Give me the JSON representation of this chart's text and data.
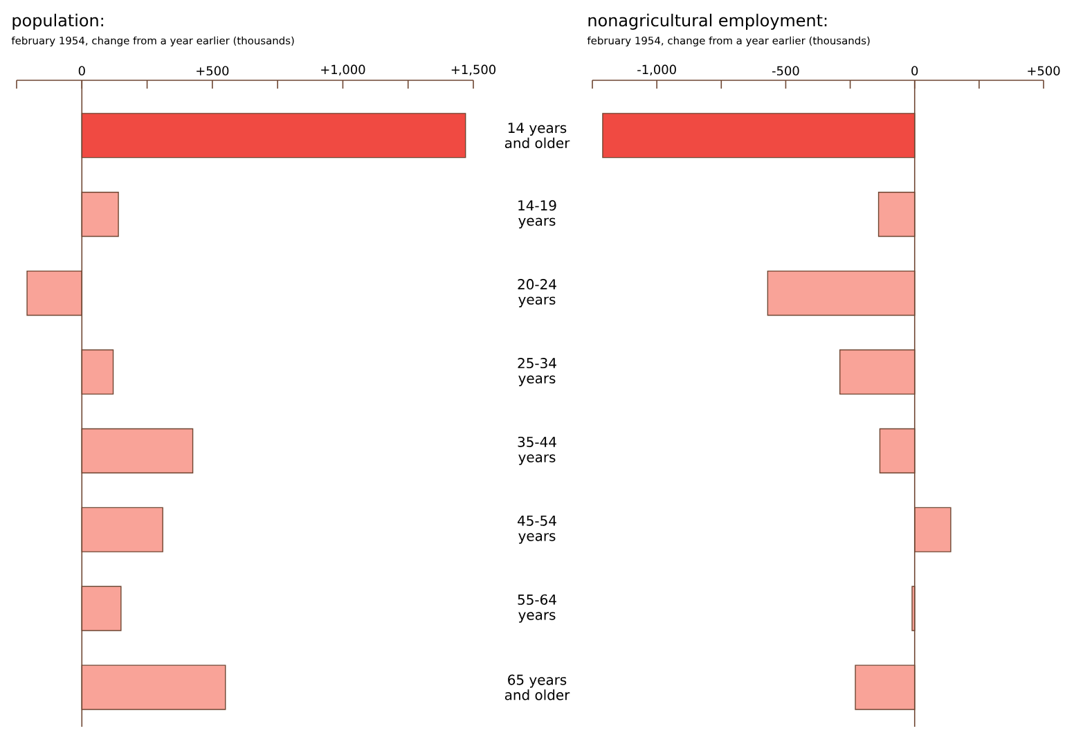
{
  "chart_data": [
    {
      "type": "bar",
      "orientation": "horizontal",
      "title": "population:",
      "subtitle": "february 1954, change from a year earlier (thousands)",
      "categories": [
        "14 years and older",
        "14-19 years",
        "20-24 years",
        "25-34 years",
        "35-44 years",
        "45-54 years",
        "55-64 years",
        "65 years and older"
      ],
      "values": [
        1470,
        140,
        -210,
        120,
        425,
        310,
        150,
        550
      ],
      "colors": [
        "#f04a42",
        "#f9a398",
        "#f9a398",
        "#f9a398",
        "#f9a398",
        "#f9a398",
        "#f9a398",
        "#f9a398"
      ],
      "xlim": [
        -250,
        1500
      ],
      "ref_lines": [
        {
          "axis": "x",
          "value": 0,
          "color": "#6e4632"
        }
      ],
      "xticks": [
        {
          "value": -250,
          "label": null
        },
        0,
        {
          "value": 250,
          "label": null
        },
        {
          "value": 500,
          "label": "+500"
        },
        {
          "value": 750,
          "label": null
        },
        {
          "value": 1000,
          "label": "+1,000"
        },
        {
          "value": 1250,
          "label": null
        },
        {
          "value": 1500,
          "label": "+1,500"
        }
      ]
    },
    {
      "type": "bar",
      "orientation": "horizontal",
      "title": "nonagricultural employment:",
      "subtitle": "february 1954, change from a year earlier (thousands)",
      "categories": [
        null,
        null,
        null,
        null,
        null,
        null,
        null,
        null
      ],
      "values": [
        -1210,
        -140,
        -570,
        -290,
        -135,
        140,
        -10,
        -230
      ],
      "colors": [
        "#f04a42",
        "#f9a398",
        "#f9a398",
        "#f9a398",
        "#f9a398",
        "#f9a398",
        "#f9a398",
        "#f9a398"
      ],
      "xlim": [
        -1250,
        500
      ],
      "xticks": [
        {
          "value": -1250,
          "label": null
        },
        {
          "value": -1000,
          "label": "-1,000"
        },
        {
          "value": -750,
          "label": null
        },
        {
          "value": -500,
          "label": "-500"
        },
        {
          "value": -250,
          "label": null
        },
        0,
        {
          "value": 250,
          "label": null
        },
        {
          "value": 500,
          "label": "+500"
        }
      ],
      "ref_lines": [
        {
          "axis": "x",
          "value": 0,
          "color": "#6e4632"
        }
      ],
      "tick_labels": "x"
    }
  ]
}
